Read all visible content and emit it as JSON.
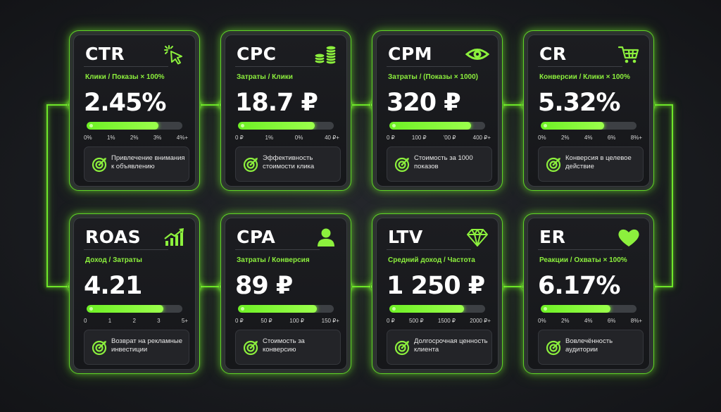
{
  "colors": {
    "accent": "#6fe62a",
    "background": "#1a1c20",
    "card": "#17181b"
  },
  "cards": [
    {
      "title": "CTR",
      "icon": "cursor-click-icon",
      "formula": "Клики / Показы × 100%",
      "value": "2.45%",
      "progress": 0.75,
      "ticks": [
        "0%",
        "1%",
        "2%",
        "3%",
        "4%+"
      ],
      "description": "Привлечение внимания к объявлению"
    },
    {
      "title": "CPC",
      "icon": "coins-icon",
      "formula": "Затраты / Клики",
      "value": "18.7 ₽",
      "progress": 0.8,
      "ticks": [
        "0 ₽",
        "1%",
        "0%",
        "40 ₽+"
      ],
      "description": "Эффективность стоимости клика"
    },
    {
      "title": "CPM",
      "icon": "eye-icon",
      "formula": "Затраты / (Показы × 1000)",
      "value": "320 ₽",
      "progress": 0.85,
      "ticks": [
        "0 ₽",
        "100 ₽",
        "'00 ₽",
        "400 ₽+"
      ],
      "description": "Стоимость за 1000 показов"
    },
    {
      "title": "CR",
      "icon": "cart-icon",
      "formula": "Конверсии / Клики × 100%",
      "value": "5.32%",
      "progress": 0.66,
      "ticks": [
        "0%",
        "2%",
        "4%",
        "6%",
        "8%+"
      ],
      "description": "Конверсия в целевое действие"
    },
    {
      "title": "ROAS",
      "icon": "growth-chart-icon",
      "formula": "Доход / Затраты",
      "value": "4.21",
      "progress": 0.8,
      "ticks": [
        "0",
        "1",
        "2",
        "3",
        "5+"
      ],
      "description": "Возврат на рекламные инвестиции"
    },
    {
      "title": "CPA",
      "icon": "user-icon",
      "formula": "Затраты / Конверсия",
      "value": "89 ₽",
      "progress": 0.82,
      "ticks": [
        "0 ₽",
        "50 ₽",
        "100 ₽",
        "150 ₽+"
      ],
      "description": "Стоимость за конверсию"
    },
    {
      "title": "LTV",
      "icon": "diamond-icon",
      "formula": "Средний доход / Частота",
      "value": "1 250 ₽",
      "progress": 0.78,
      "ticks": [
        "0 ₽",
        "500 ₽",
        "1500 ₽",
        "2000 ₽+"
      ],
      "description": "Долгосрочная ценность клиента"
    },
    {
      "title": "ER",
      "icon": "heart-icon",
      "formula": "Реакции / Охваты × 100%",
      "value": "6.17%",
      "progress": 0.73,
      "ticks": [
        "0%",
        "2%",
        "4%",
        "6%",
        "8%+"
      ],
      "description": "Вовлечённость аудитории"
    }
  ]
}
